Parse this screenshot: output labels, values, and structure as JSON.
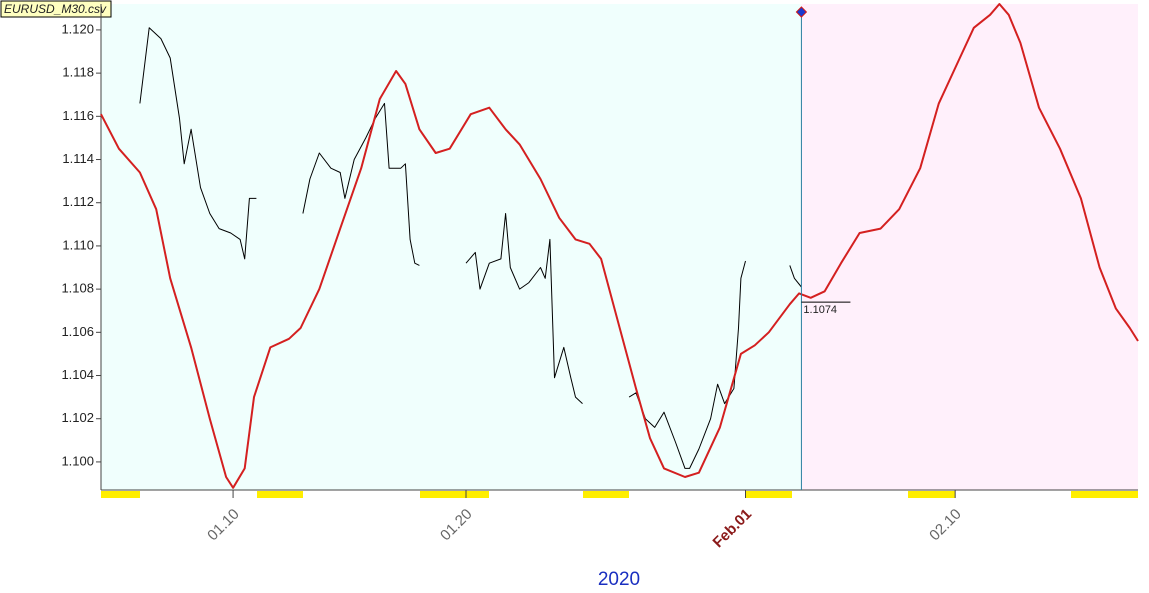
{
  "chart_data": {
    "type": "line",
    "title": "EURUSD_M30.csv",
    "x_label": "2020",
    "xlim": [
      4.33,
      48.85
    ],
    "ylim": [
      1.0987,
      1.1212
    ],
    "xticks": [
      {
        "value": 10,
        "label": "01.10"
      },
      {
        "value": 20,
        "label": "01.20"
      },
      {
        "value": 32,
        "label": "Feb.01"
      },
      {
        "value": 41,
        "label": "02.10"
      }
    ],
    "yticks": [
      {
        "value": 1.1,
        "label": "1.100"
      },
      {
        "value": 1.102,
        "label": "1.102"
      },
      {
        "value": 1.104,
        "label": "1.104"
      },
      {
        "value": 1.106,
        "label": "1.106"
      },
      {
        "value": 1.108,
        "label": "1.108"
      },
      {
        "value": 1.11,
        "label": "1.110"
      },
      {
        "value": 1.112,
        "label": "1.112"
      },
      {
        "value": 1.114,
        "label": "1.114"
      },
      {
        "value": 1.116,
        "label": "1.116"
      },
      {
        "value": 1.118,
        "label": "1.118"
      },
      {
        "value": 1.12,
        "label": "1.120"
      }
    ],
    "forecast_start": 34.4,
    "last_value": 1.1074,
    "series": [
      {
        "color": "#000000",
        "x": [
          6.0,
          6.4,
          6.9,
          7.3,
          7.7,
          7.9,
          8.2,
          8.6,
          9.0,
          9.4,
          9.9,
          10.3,
          10.5,
          10.7,
          11.0,
          12.0,
          13.0,
          13.3,
          13.7,
          14.2,
          14.6,
          14.8,
          15.2,
          15.7,
          16.1,
          16.5,
          16.7,
          17.2,
          17.4,
          17.6,
          17.8,
          18.0,
          19.0,
          20.0,
          20.4,
          20.6,
          21.0,
          21.5,
          21.7,
          21.9,
          22.3,
          22.7,
          23.2,
          23.4,
          23.6,
          23.8,
          24.2,
          24.5,
          24.7,
          25.0,
          26.0,
          27.0,
          27.3,
          27.7,
          28.1,
          28.5,
          29.0,
          29.4,
          29.6,
          30.0,
          30.5,
          30.8,
          31.1,
          31.5,
          31.7,
          31.8,
          32.0,
          33.0,
          33.9,
          34.1,
          34.4
        ],
        "values": [
          1.1166,
          1.1201,
          1.1196,
          1.1187,
          1.1159,
          1.1138,
          1.1154,
          1.1127,
          1.1115,
          1.1108,
          1.1106,
          1.1103,
          1.1094,
          1.1122,
          1.1122,
          null,
          1.1115,
          1.1131,
          1.1143,
          1.1136,
          1.1134,
          1.1122,
          1.114,
          1.115,
          1.1159,
          1.1166,
          1.1136,
          1.1136,
          1.1138,
          1.1103,
          1.1092,
          1.1091,
          null,
          1.1092,
          1.1097,
          1.108,
          1.1092,
          1.1094,
          1.1115,
          1.109,
          1.108,
          1.1083,
          1.109,
          1.1085,
          1.1103,
          1.1039,
          1.1053,
          1.1039,
          1.103,
          1.1027,
          null,
          1.103,
          1.1032,
          1.102,
          1.1016,
          1.1023,
          1.1009,
          1.0997,
          1.0997,
          1.1006,
          1.102,
          1.1036,
          1.1027,
          1.1034,
          1.1062,
          1.1085,
          1.1093,
          null,
          1.1091,
          1.1085,
          1.1081
        ]
      },
      {
        "color": "#d42020",
        "x": [
          4.33,
          5.1,
          6.0,
          6.7,
          7.3,
          8.2,
          9.0,
          9.7,
          10.0,
          10.5,
          10.9,
          11.6,
          12.4,
          12.9,
          13.7,
          14.6,
          15.5,
          16.3,
          17.0,
          17.4,
          18.0,
          18.7,
          19.3,
          20.2,
          21.0,
          21.7,
          22.3,
          23.2,
          24.0,
          24.7,
          25.3,
          25.8,
          26.6,
          27.3,
          27.9,
          28.5,
          29.4,
          30.0,
          30.9,
          31.8,
          32.4,
          33.0,
          33.9,
          34.3,
          34.8,
          35.4,
          36.1,
          36.9,
          37.8,
          38.6,
          39.5,
          40.3,
          41.2,
          41.8,
          42.5,
          42.9,
          43.3,
          43.8,
          44.6,
          45.5,
          46.4,
          47.2,
          47.9,
          48.5,
          48.85
        ],
        "values": [
          1.1161,
          1.1145,
          1.1134,
          1.1117,
          1.1085,
          1.1053,
          1.102,
          1.0993,
          1.0988,
          1.0997,
          1.103,
          1.1053,
          1.1057,
          1.1062,
          1.108,
          1.1108,
          1.1136,
          1.1168,
          1.1181,
          1.1175,
          1.1154,
          1.1143,
          1.1145,
          1.1161,
          1.1164,
          1.1154,
          1.1147,
          1.1131,
          1.1113,
          1.1103,
          1.1101,
          1.1094,
          1.1062,
          1.1034,
          1.1011,
          1.0997,
          1.0993,
          1.0995,
          1.1016,
          1.105,
          1.1054,
          1.106,
          1.1073,
          1.1078,
          1.1076,
          1.1079,
          1.1092,
          1.1106,
          1.1108,
          1.1117,
          1.1136,
          1.1166,
          1.1187,
          1.1201,
          1.1207,
          1.1212,
          1.1207,
          1.1194,
          1.1164,
          1.1145,
          1.1122,
          1.109,
          1.1071,
          1.1062,
          1.1056
        ]
      }
    ]
  }
}
